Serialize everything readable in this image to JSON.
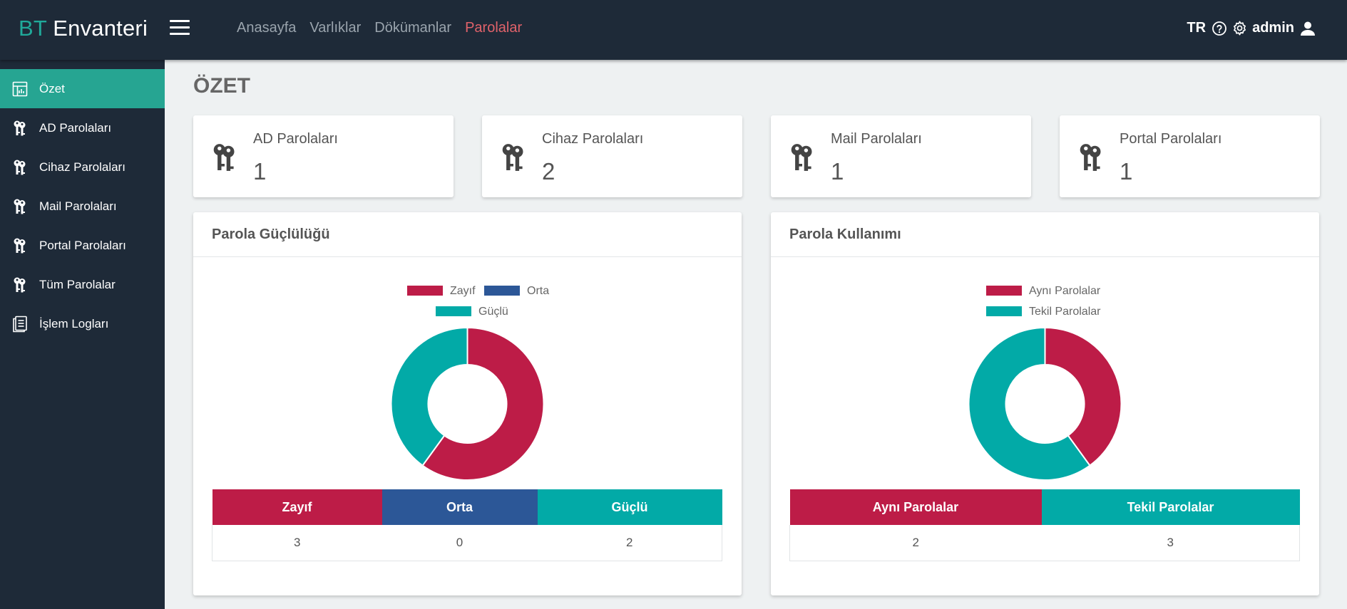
{
  "brand": {
    "accent": "BT",
    "rest": "Envanteri"
  },
  "topnav": [
    {
      "label": "Anasayfa",
      "active": false
    },
    {
      "label": "Varlıklar",
      "active": false
    },
    {
      "label": "Dökümanlar",
      "active": false
    },
    {
      "label": "Parolalar",
      "active": true
    }
  ],
  "header_right": {
    "language": "TR",
    "help_icon": "help-circle-icon",
    "settings_icon": "gear-icon",
    "username": "admin",
    "user_icon": "user-icon"
  },
  "sidebar": {
    "items": [
      {
        "label": "Özet",
        "icon": "dashboard-icon",
        "active": true
      },
      {
        "label": "AD Parolaları",
        "icon": "keys-icon",
        "active": false
      },
      {
        "label": "Cihaz Parolaları",
        "icon": "keys-icon",
        "active": false
      },
      {
        "label": "Mail Parolaları",
        "icon": "keys-icon",
        "active": false
      },
      {
        "label": "Portal Parolaları",
        "icon": "keys-icon",
        "active": false
      },
      {
        "label": "Tüm Parolalar",
        "icon": "keys-icon",
        "active": false
      },
      {
        "label": "İşlem Logları",
        "icon": "document-icon",
        "active": false
      }
    ]
  },
  "page": {
    "title": "ÖZET"
  },
  "stats": [
    {
      "label": "AD Parolaları",
      "value": "1"
    },
    {
      "label": "Cihaz Parolaları",
      "value": "2"
    },
    {
      "label": "Mail Parolaları",
      "value": "1"
    },
    {
      "label": "Portal Parolaları",
      "value": "1"
    }
  ],
  "colors": {
    "weak": "#bd1c47",
    "medium": "#2c5797",
    "strong": "#02aaa7",
    "sidebar": "#1e2a38",
    "active": "#26a592",
    "nav_active": "#e0626a"
  },
  "chart_data": [
    {
      "type": "doughnut",
      "title": "Parola Güçlülüğü",
      "legend": "top",
      "series": [
        {
          "name": "Zayıf",
          "value": 3,
          "color": "#bd1c47"
        },
        {
          "name": "Orta",
          "value": 0,
          "color": "#2c5797"
        },
        {
          "name": "Güçlü",
          "value": 2,
          "color": "#02aaa7"
        }
      ]
    },
    {
      "type": "doughnut",
      "title": "Parola Kullanımı",
      "legend": "top",
      "series": [
        {
          "name": "Aynı Parolalar",
          "value": 2,
          "color": "#bd1c47"
        },
        {
          "name": "Tekil Parolalar",
          "value": 3,
          "color": "#02aaa7"
        }
      ]
    }
  ]
}
